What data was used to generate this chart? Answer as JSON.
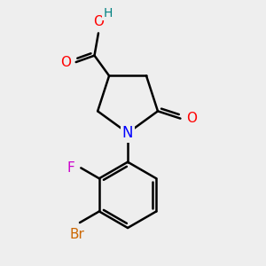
{
  "bg_color": "#eeeeee",
  "atom_colors": {
    "O": "#ff0000",
    "N": "#0000ff",
    "F": "#cc00cc",
    "Br": "#cc6600",
    "H": "#008080",
    "C": "#000000"
  },
  "font_size": 11,
  "fig_size": [
    3.0,
    3.0
  ],
  "dpi": 100
}
